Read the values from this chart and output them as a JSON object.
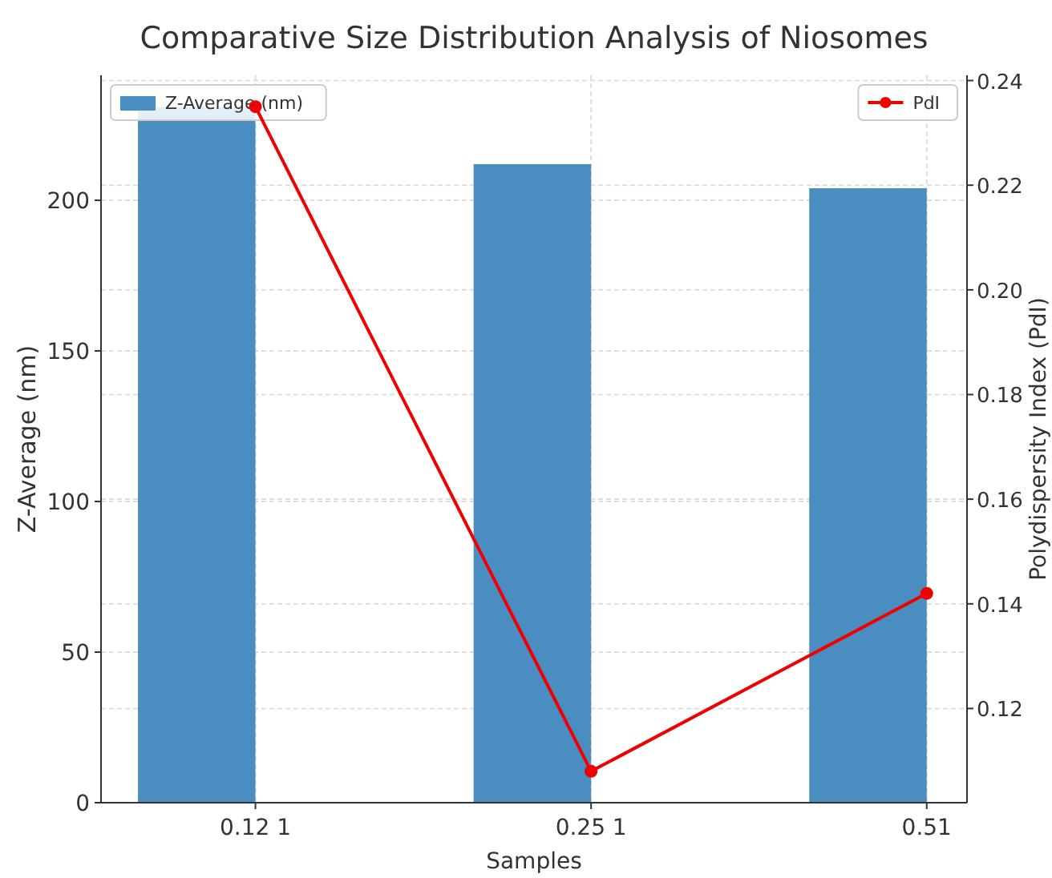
{
  "chart_data": {
    "type": "bar",
    "title": "Comparative Size Distribution Analysis of Niosomes",
    "xlabel": "Samples",
    "ylabel": "Z-Average (nm)",
    "y2label": "Polydispersity Index (PdI)",
    "categories": [
      "0.12 1",
      "0.25 1",
      "0.51"
    ],
    "series": [
      {
        "name": "Z-Average (nm)",
        "color": "#4a8dc1",
        "values": [
          231,
          212,
          204
        ]
      },
      {
        "name": "PdI",
        "type": "line",
        "axis": "y2",
        "color": "#f00000",
        "values": [
          0.235,
          0.108,
          0.142
        ]
      }
    ],
    "ylim": [
      0,
      241.5
    ],
    "yticks": [
      0,
      50,
      100,
      150,
      200
    ],
    "y2lim": [
      0.102,
      0.241
    ],
    "y2ticks": [
      {
        "value": 0.12,
        "label": "0.12"
      },
      {
        "value": 0.14,
        "label": "0.14"
      },
      {
        "value": 0.16,
        "label": "0.16"
      },
      {
        "value": 0.18,
        "label": "0.18"
      },
      {
        "value": 0.2,
        "label": "0.20"
      },
      {
        "value": 0.22,
        "label": "0.22"
      },
      {
        "value": 0.24,
        "label": "0.24"
      }
    ],
    "grid": true,
    "legend": "top",
    "marker": "circle",
    "line_style": "solid"
  }
}
